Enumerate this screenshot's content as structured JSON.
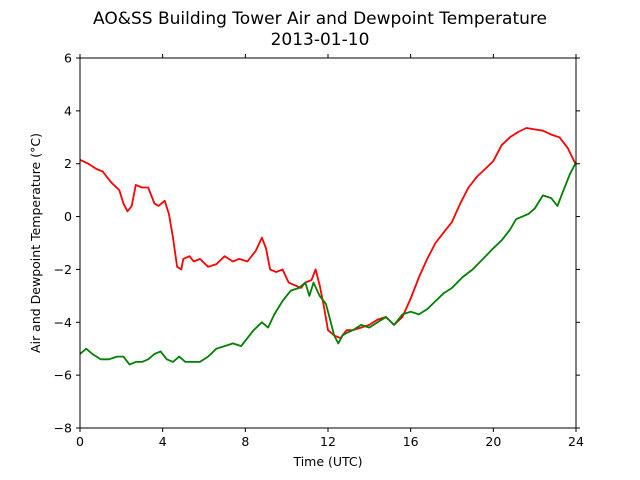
{
  "chart_data": {
    "type": "line",
    "title": "AO&SS Building Tower Air and Dewpoint Temperature",
    "subtitle": "2013-01-10",
    "xlabel": "Time (UTC)",
    "ylabel": "Air and Dewpoint Temperature (°C)",
    "xlim": [
      0,
      24
    ],
    "ylim": [
      -8,
      6
    ],
    "xticks": [
      0,
      4,
      8,
      12,
      16,
      20,
      24
    ],
    "yticks": [
      -8,
      -6,
      -4,
      -2,
      0,
      2,
      4,
      6
    ],
    "grid": false,
    "legend": "none",
    "series": [
      {
        "color": "#ff0000",
        "x": [
          0,
          0.4,
          0.8,
          1.1,
          1.5,
          1.9,
          2.1,
          2.3,
          2.5,
          2.7,
          3.0,
          3.3,
          3.6,
          3.8,
          4.1,
          4.3,
          4.5,
          4.7,
          4.9,
          5.0,
          5.3,
          5.5,
          5.8,
          6.2,
          6.6,
          7.0,
          7.4,
          7.7,
          8.1,
          8.5,
          8.8,
          9.0,
          9.2,
          9.5,
          9.8,
          10.1,
          10.4,
          10.7,
          10.9,
          11.2,
          11.4,
          11.6,
          11.8,
          12.0,
          12.3,
          12.6,
          12.9,
          13.2,
          13.6,
          14.0,
          14.4,
          14.8,
          15.2,
          15.6,
          16.0,
          16.4,
          16.8,
          17.2,
          17.6,
          18.0,
          18.4,
          18.8,
          19.2,
          19.6,
          20.0,
          20.4,
          20.8,
          21.2,
          21.6,
          22.0,
          22.4,
          22.8,
          23.2,
          23.6,
          24.0
        ],
        "y": [
          2.15,
          2.0,
          1.8,
          1.7,
          1.3,
          1.0,
          0.5,
          0.2,
          0.4,
          1.2,
          1.1,
          1.1,
          0.5,
          0.4,
          0.6,
          0.1,
          -0.8,
          -1.9,
          -2.0,
          -1.6,
          -1.5,
          -1.7,
          -1.6,
          -1.9,
          -1.8,
          -1.5,
          -1.7,
          -1.6,
          -1.7,
          -1.3,
          -0.8,
          -1.2,
          -2.0,
          -2.1,
          -2.0,
          -2.5,
          -2.6,
          -2.7,
          -2.5,
          -2.4,
          -2.0,
          -2.6,
          -3.4,
          -4.3,
          -4.5,
          -4.6,
          -4.3,
          -4.3,
          -4.2,
          -4.1,
          -3.9,
          -3.8,
          -4.1,
          -3.8,
          -3.1,
          -2.3,
          -1.6,
          -1.0,
          -0.6,
          -0.2,
          0.5,
          1.1,
          1.5,
          1.8,
          2.1,
          2.7,
          3.0,
          3.2,
          3.35,
          3.3,
          3.25,
          3.1,
          3.0,
          2.6,
          1.95
        ]
      },
      {
        "color": "#008000",
        "x": [
          0,
          0.3,
          0.6,
          1.0,
          1.4,
          1.8,
          2.1,
          2.4,
          2.7,
          3.0,
          3.3,
          3.6,
          3.9,
          4.2,
          4.5,
          4.8,
          5.1,
          5.4,
          5.8,
          6.2,
          6.6,
          7.0,
          7.4,
          7.8,
          8.1,
          8.4,
          8.8,
          9.1,
          9.4,
          9.8,
          10.2,
          10.6,
          10.9,
          11.1,
          11.3,
          11.6,
          11.9,
          12.1,
          12.3,
          12.5,
          12.7,
          12.9,
          13.2,
          13.6,
          14.0,
          14.4,
          14.8,
          15.2,
          15.6,
          16.0,
          16.4,
          16.8,
          17.2,
          17.6,
          18.0,
          18.5,
          19.0,
          19.5,
          20.0,
          20.4,
          20.8,
          21.1,
          21.4,
          21.7,
          22.0,
          22.4,
          22.8,
          23.1,
          23.4,
          23.7,
          24.0
        ],
        "y": [
          -5.2,
          -5.0,
          -5.2,
          -5.4,
          -5.4,
          -5.3,
          -5.3,
          -5.6,
          -5.5,
          -5.5,
          -5.4,
          -5.2,
          -5.1,
          -5.4,
          -5.5,
          -5.3,
          -5.5,
          -5.5,
          -5.5,
          -5.3,
          -5.0,
          -4.9,
          -4.8,
          -4.9,
          -4.6,
          -4.3,
          -4.0,
          -4.2,
          -3.7,
          -3.2,
          -2.8,
          -2.7,
          -2.5,
          -3.0,
          -2.5,
          -3.0,
          -3.3,
          -3.9,
          -4.5,
          -4.8,
          -4.5,
          -4.4,
          -4.3,
          -4.1,
          -4.2,
          -4.0,
          -3.8,
          -4.1,
          -3.7,
          -3.6,
          -3.7,
          -3.5,
          -3.2,
          -2.9,
          -2.7,
          -2.3,
          -2.0,
          -1.6,
          -1.2,
          -0.9,
          -0.5,
          -0.1,
          0.0,
          0.1,
          0.3,
          0.8,
          0.7,
          0.4,
          1.0,
          1.6,
          2.05
        ]
      }
    ]
  }
}
